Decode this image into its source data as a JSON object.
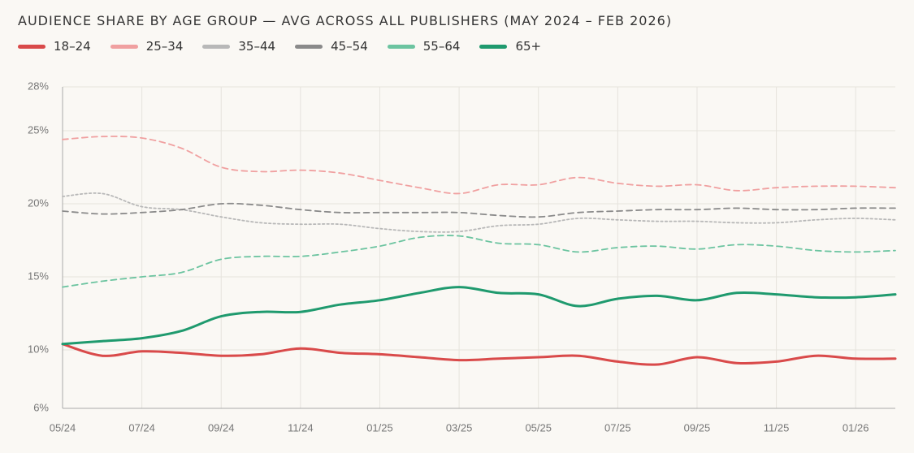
{
  "chart_data": {
    "type": "line",
    "title": "AUDIENCE SHARE BY AGE GROUP — AVG ACROSS ALL PUBLISHERS (MAY 2024 – FEB 2026)",
    "categories": [
      "05/24",
      null,
      "07/24",
      null,
      "09/24",
      null,
      "11/24",
      null,
      "01/25",
      null,
      "03/25",
      null,
      "05/25",
      null,
      "07/25",
      null,
      "09/25",
      null,
      "11/25",
      null,
      "01/26",
      null
    ],
    "ylim": [
      6,
      28
    ],
    "yticks": [
      {
        "value": 6,
        "label": "6%"
      },
      {
        "value": 10,
        "label": "10%"
      },
      {
        "value": 15,
        "label": "15%"
      },
      {
        "value": 20,
        "label": "20%"
      },
      {
        "value": 25,
        "label": "25%"
      },
      {
        "value": 28,
        "label": "28%"
      }
    ],
    "grid": true,
    "series": [
      {
        "name": "18–24",
        "color": "#d94a4a",
        "dash": "solid",
        "values": [
          10.4,
          9.6,
          9.9,
          9.8,
          9.6,
          9.7,
          10.1,
          9.8,
          9.7,
          9.5,
          9.3,
          9.4,
          9.5,
          9.6,
          9.2,
          9.0,
          9.5,
          9.1,
          9.2,
          9.6,
          9.4,
          9.4
        ]
      },
      {
        "name": "25–34",
        "color": "#f0a0a0",
        "dash": "dashed",
        "values": [
          24.4,
          24.6,
          24.5,
          23.8,
          22.5,
          22.2,
          22.3,
          22.1,
          21.6,
          21.1,
          20.7,
          21.3,
          21.3,
          21.8,
          21.4,
          21.2,
          21.3,
          20.9,
          21.1,
          21.2,
          21.2,
          21.1
        ]
      },
      {
        "name": "35–44",
        "color": "#b8b8b8",
        "dash": "dotted",
        "values": [
          20.5,
          20.7,
          19.8,
          19.6,
          19.1,
          18.7,
          18.6,
          18.6,
          18.3,
          18.1,
          18.1,
          18.5,
          18.6,
          19.0,
          18.9,
          18.8,
          18.8,
          18.7,
          18.7,
          18.9,
          19.0,
          18.9
        ]
      },
      {
        "name": "45–54",
        "color": "#8a8a8a",
        "dash": "dashed",
        "values": [
          19.5,
          19.3,
          19.4,
          19.6,
          20.0,
          19.9,
          19.6,
          19.4,
          19.4,
          19.4,
          19.4,
          19.2,
          19.1,
          19.4,
          19.5,
          19.6,
          19.6,
          19.7,
          19.6,
          19.6,
          19.7,
          19.7
        ]
      },
      {
        "name": "55–64",
        "color": "#6cc4a0",
        "dash": "dashed",
        "values": [
          14.3,
          14.7,
          15.0,
          15.3,
          16.2,
          16.4,
          16.4,
          16.7,
          17.1,
          17.7,
          17.8,
          17.3,
          17.2,
          16.7,
          17.0,
          17.1,
          16.9,
          17.2,
          17.1,
          16.8,
          16.7,
          16.8
        ]
      },
      {
        "name": "65+",
        "color": "#1f9a6e",
        "dash": "solid",
        "values": [
          10.4,
          10.6,
          10.8,
          11.3,
          12.3,
          12.6,
          12.6,
          13.1,
          13.4,
          13.9,
          14.3,
          13.9,
          13.8,
          13.0,
          13.5,
          13.7,
          13.4,
          13.9,
          13.8,
          13.6,
          13.6,
          13.8
        ]
      }
    ]
  }
}
